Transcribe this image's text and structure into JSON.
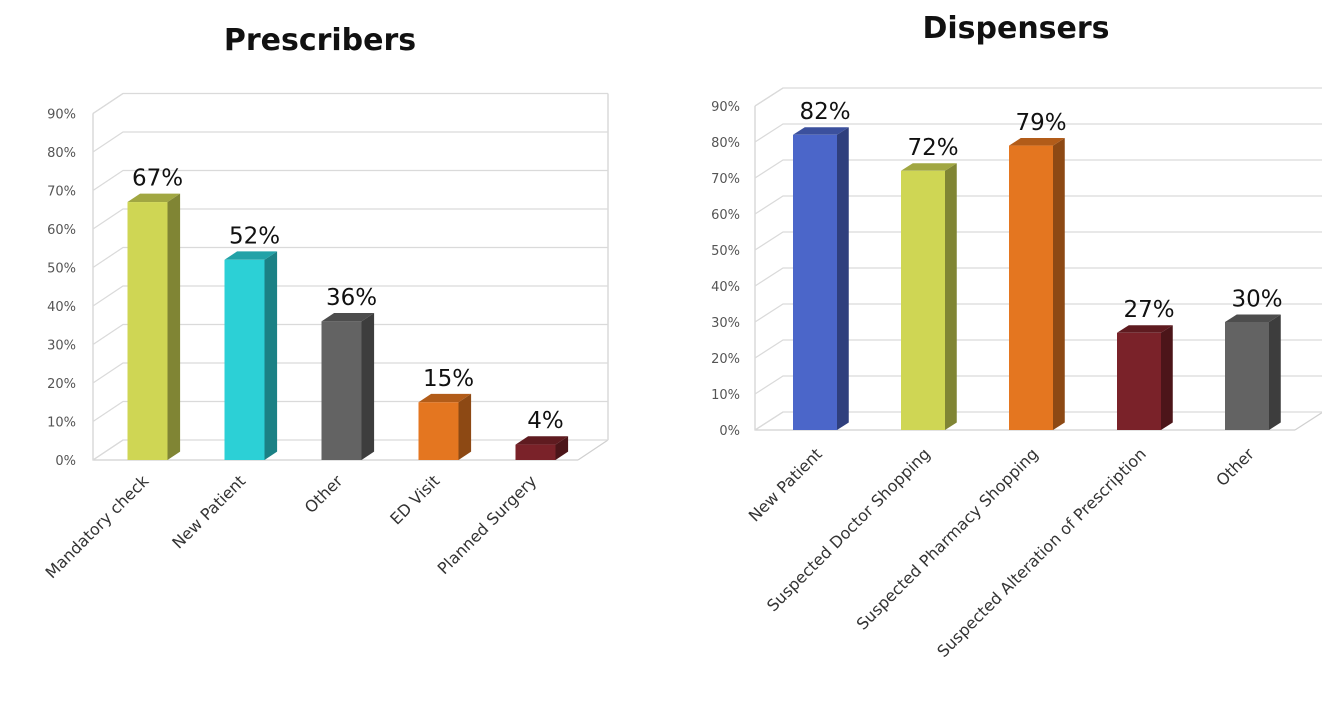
{
  "chart_data": [
    {
      "type": "bar",
      "title": "Prescribers",
      "categories": [
        "Mandatory check",
        "New Patient",
        "Other",
        "ED Visit",
        "Planned Surgery"
      ],
      "values": [
        67,
        52,
        36,
        15,
        4
      ],
      "value_labels": [
        "67%",
        "52%",
        "36%",
        "15%",
        "4%"
      ],
      "colors": [
        "#cfd654",
        "#2cd0d6",
        "#636363",
        "#e47620",
        "#7a2229"
      ],
      "yticks": [
        "0%",
        "10%",
        "20%",
        "30%",
        "40%",
        "50%",
        "60%",
        "70%",
        "80%",
        "90%"
      ],
      "ylim": [
        0,
        90
      ],
      "grid": true,
      "style": "3d-column"
    },
    {
      "type": "bar",
      "title": "Dispensers",
      "categories": [
        "New Patient",
        "Suspected Doctor Shopping",
        "Suspected Pharmacy Shopping",
        "Suspected Alteration of Prescription",
        "Other"
      ],
      "values": [
        82,
        72,
        79,
        27,
        30
      ],
      "value_labels": [
        "82%",
        "72%",
        "79%",
        "27%",
        "30%"
      ],
      "colors": [
        "#4b66c9",
        "#cfd654",
        "#e47620",
        "#7a2229",
        "#636363"
      ],
      "yticks": [
        "0%",
        "10%",
        "20%",
        "30%",
        "40%",
        "50%",
        "60%",
        "70%",
        "80%",
        "90%"
      ],
      "ylim": [
        0,
        90
      ],
      "grid": true,
      "style": "3d-column"
    }
  ]
}
